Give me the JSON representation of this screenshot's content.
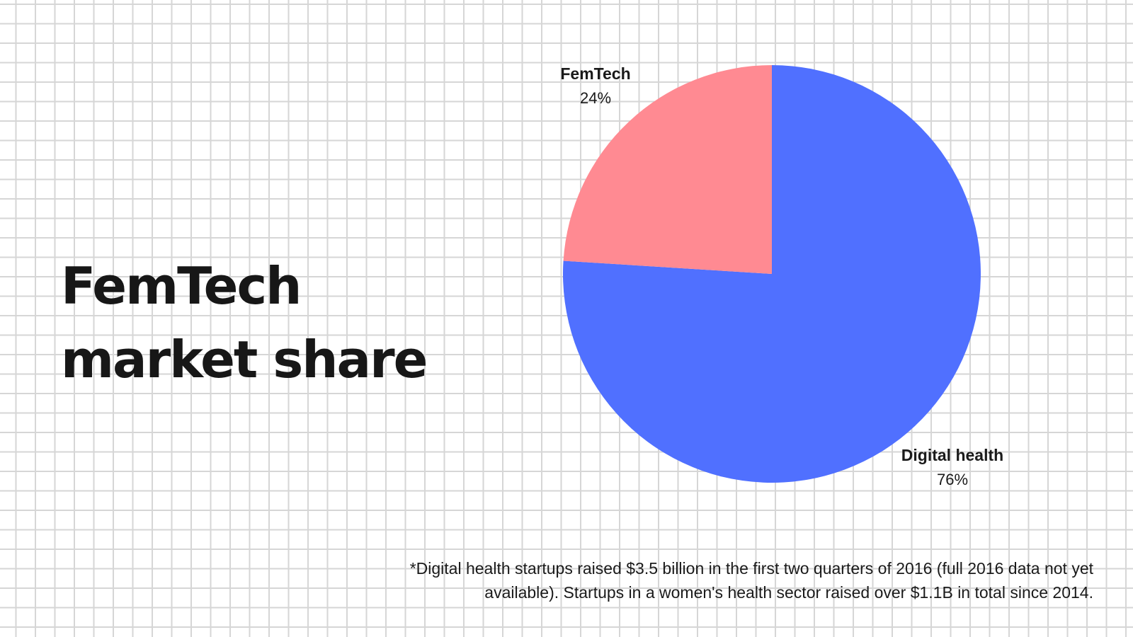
{
  "heading": {
    "line1": "FemTech",
    "line2": "market share"
  },
  "footnote": "*Digital health startups raised $3.5 billion in the first two quarters of 2016 (full 2016 data not yet available). Startups in a women's health sector raised over $1.1B in total since 2014.",
  "chart_data": {
    "type": "pie",
    "slices": [
      {
        "label": "Digital health",
        "value": 76,
        "display": "76%",
        "color": "#5070ff"
      },
      {
        "label": "FemTech",
        "value": 24,
        "display": "24%",
        "color": "#ff8a92"
      }
    ]
  }
}
